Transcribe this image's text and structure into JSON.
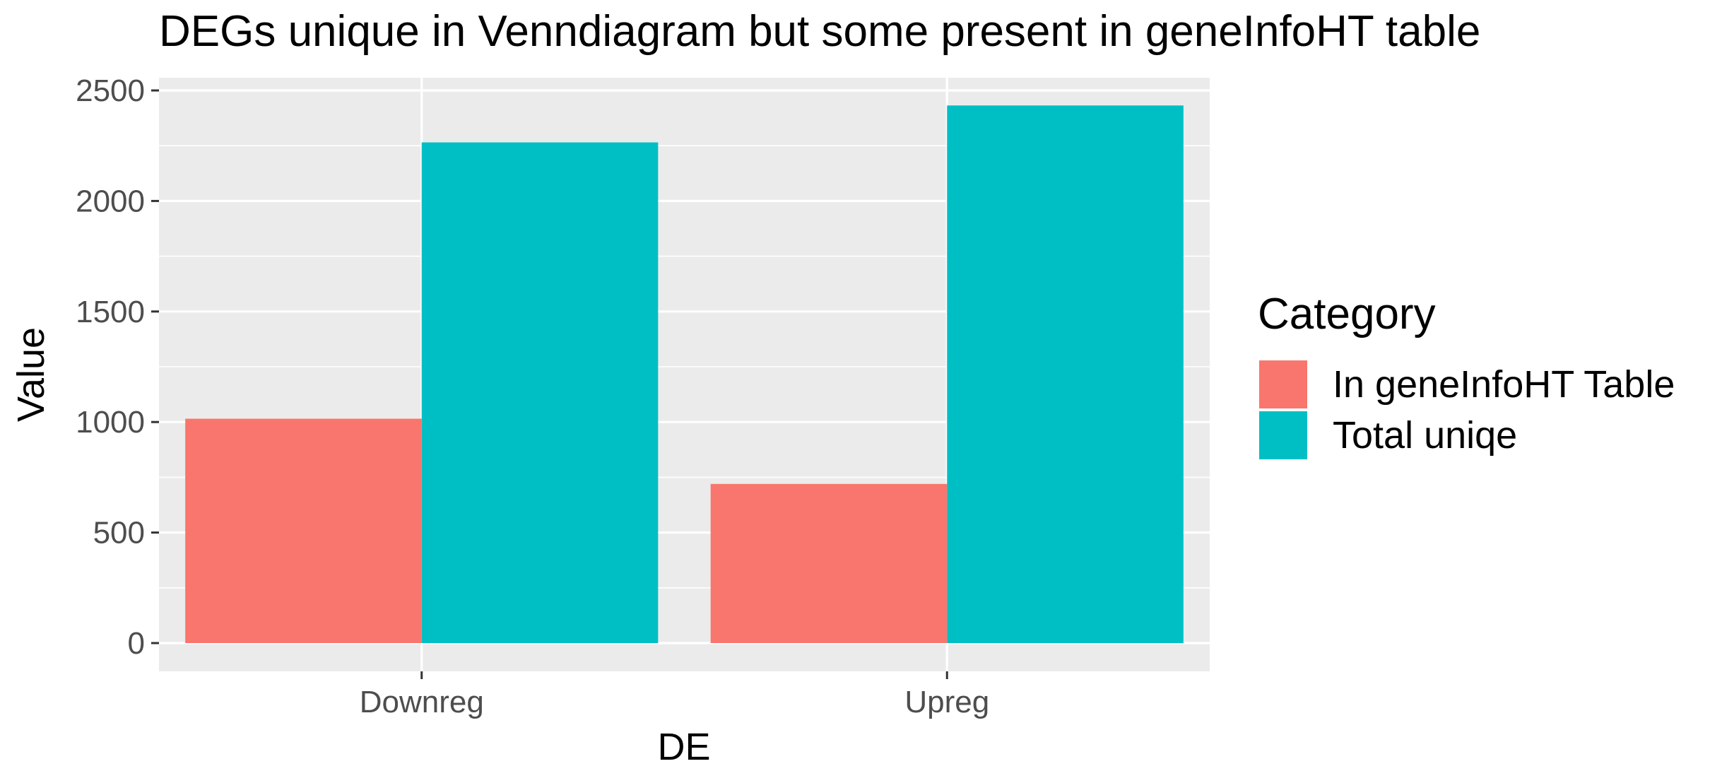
{
  "chart_data": {
    "type": "bar",
    "title": "DEGs unique in Venndiagram but some present in geneInfoHT table",
    "xlabel": "DE",
    "ylabel": "Value",
    "categories": [
      "Downreg",
      "Upreg"
    ],
    "series": [
      {
        "name": "In geneInfoHT Table",
        "color": "#F8766D",
        "values": [
          1015,
          720
        ]
      },
      {
        "name": "Total uniqe",
        "color": "#00BFC4",
        "values": [
          2265,
          2432
        ]
      }
    ],
    "ylim": [
      0,
      2500
    ],
    "yticks": [
      0,
      500,
      1000,
      1500,
      2000,
      2500
    ],
    "grid": true,
    "legend": {
      "title": "Category",
      "placement": "right"
    },
    "colors": {
      "panel_background": "#EBEBEB",
      "grid_major": "#FFFFFF",
      "tick_label": "#4D4D4D",
      "axis_title": "#000000"
    }
  }
}
